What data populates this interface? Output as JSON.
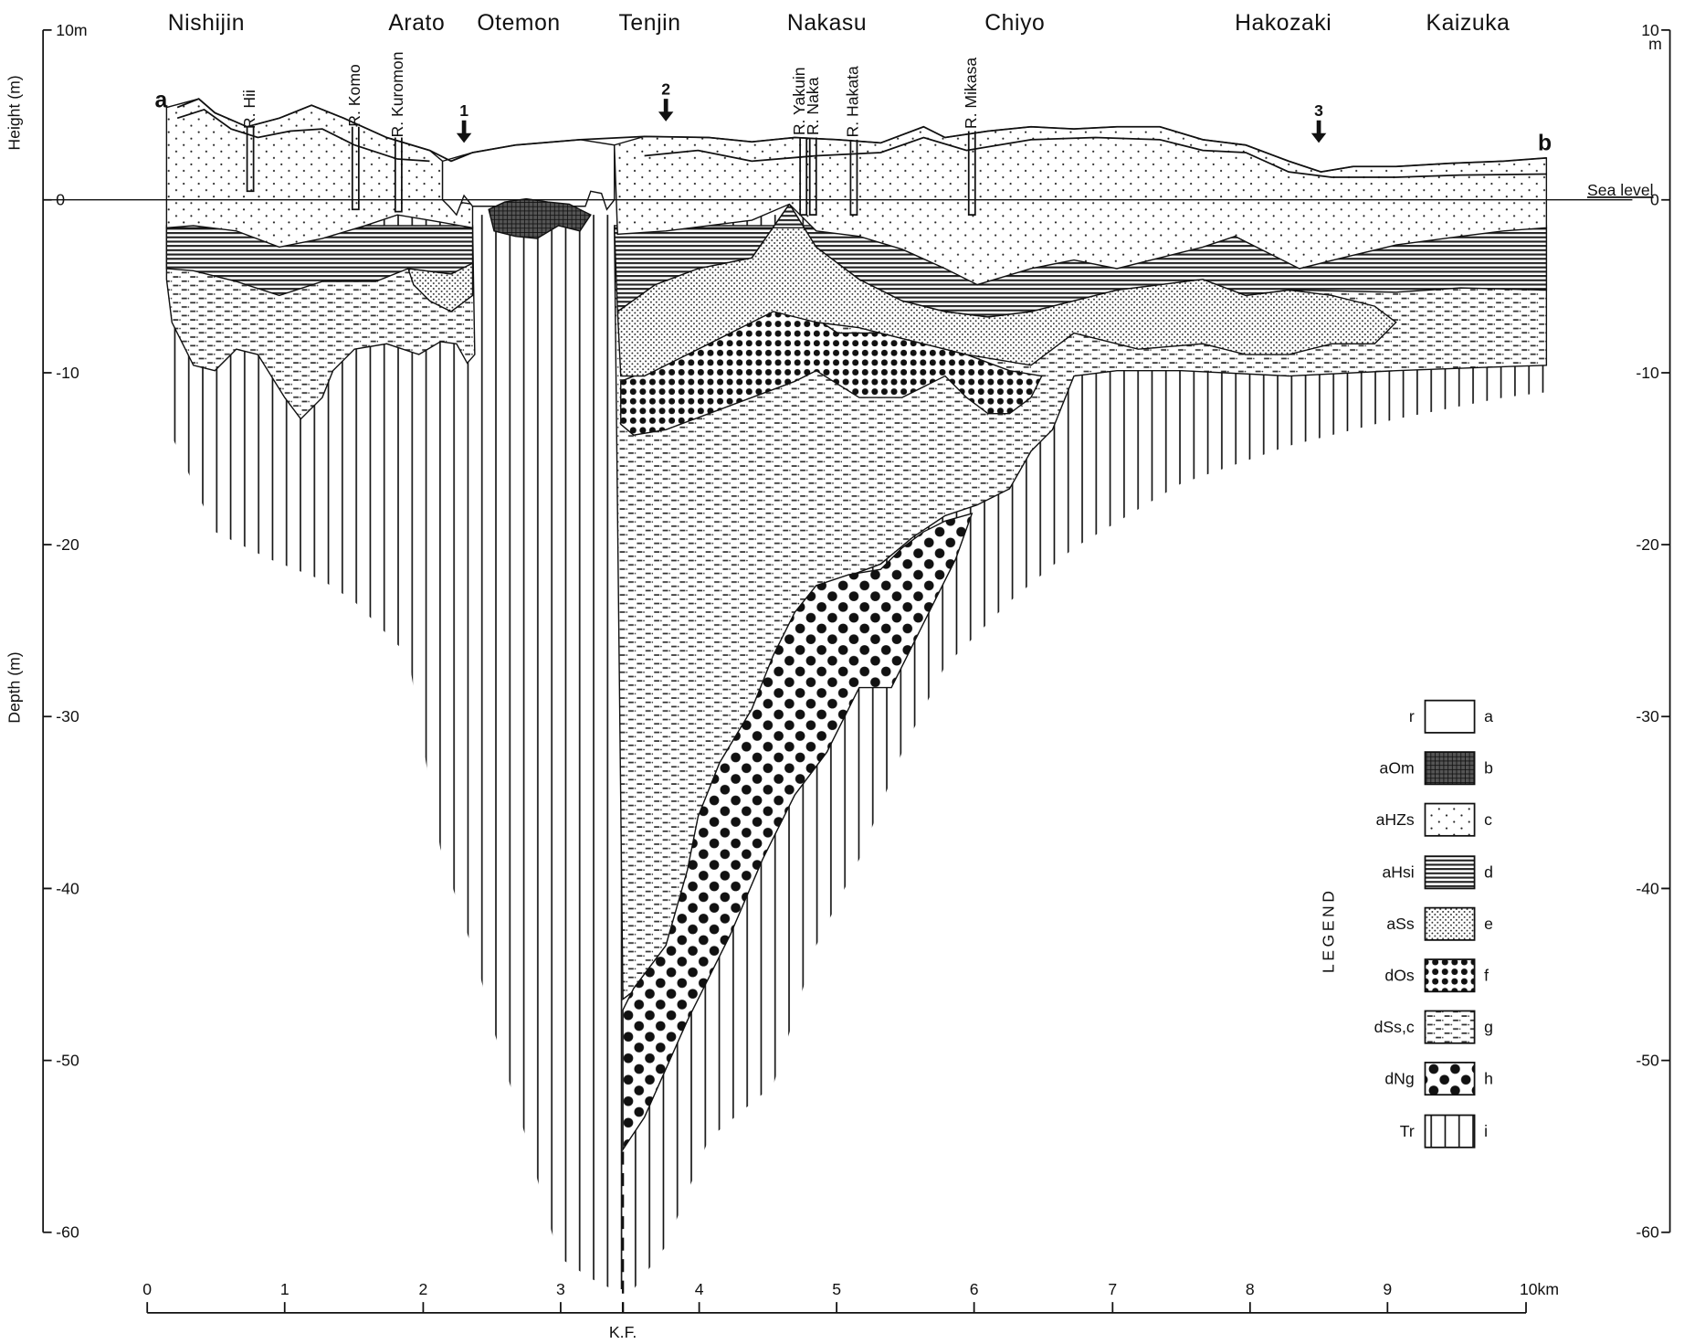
{
  "places": [
    "Nishijin",
    "Arato",
    "Otemon",
    "Tenjin",
    "Nakasu",
    "Chiyo",
    "Hakozaki",
    "Kaizuka"
  ],
  "rivers": [
    "R. Hii",
    "R. Komo",
    "R. Kuromon",
    "R. Yakuin",
    "R. Naka",
    "R. Hakata",
    "R. Mikasa"
  ],
  "section_ends": [
    "a",
    "b"
  ],
  "arrows": [
    "1",
    "2",
    "3"
  ],
  "sea_level": "Sea level",
  "left_axis": {
    "height_label": "Height (m)",
    "depth_label": "Depth (m)",
    "ticks": [
      "10m",
      "0",
      "-10",
      "-20",
      "-30",
      "-40",
      "-50",
      "-60"
    ]
  },
  "right_axis": {
    "ticks": [
      "10",
      "0",
      "-10",
      "-20",
      "-30",
      "-40",
      "-50",
      "-60"
    ],
    "unit": "m"
  },
  "bottom_axis": {
    "ticks": [
      "0",
      "1",
      "2",
      "3",
      "4",
      "5",
      "6",
      "7",
      "8",
      "9",
      "10km"
    ],
    "fault": "K.F."
  },
  "legend": {
    "title": "LEGEND",
    "rows": [
      [
        "r",
        "a"
      ],
      [
        "aOm",
        "b"
      ],
      [
        "aHZs",
        "c"
      ],
      [
        "aHsi",
        "d"
      ],
      [
        "aSs",
        "e"
      ],
      [
        "dOs",
        "f"
      ],
      [
        "dSs,c",
        "g"
      ],
      [
        "dNg",
        "h"
      ],
      [
        "Tr",
        "i"
      ]
    ]
  }
}
